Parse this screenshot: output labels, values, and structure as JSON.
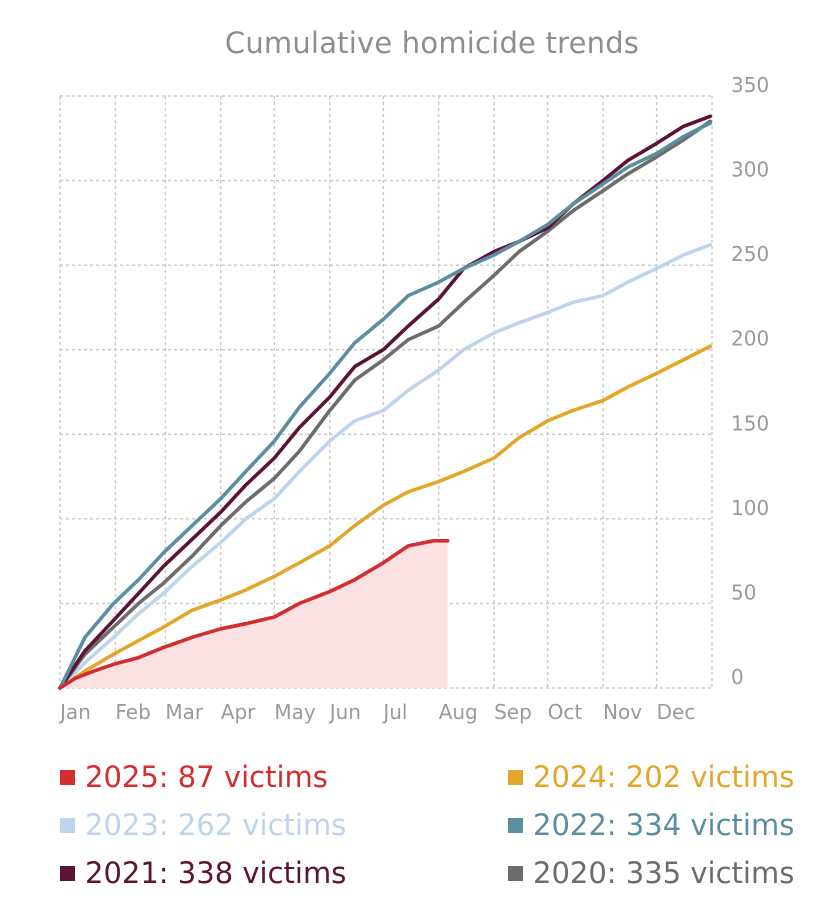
{
  "chart_data": {
    "type": "line",
    "title": "Cumulative homicide trends",
    "xlabel": "",
    "ylabel": "",
    "y_axis_position": "right",
    "ylim": [
      0,
      350
    ],
    "yticks": [
      0,
      50,
      100,
      150,
      200,
      250,
      300,
      350
    ],
    "x_month_labels": [
      "Jan",
      "Feb",
      "Mar",
      "Apr",
      "May",
      "Jun",
      "Jul",
      "Aug",
      "Sep",
      "Oct",
      "Nov",
      "Dec"
    ],
    "xlim_day_of_year": [
      1,
      366
    ],
    "grid": true,
    "legend_position": "bottom",
    "series": [
      {
        "name": "2025: 87 victims",
        "color": "#d32d2f",
        "filled": true,
        "fill_color": "#fbe1e2",
        "x": [
          1,
          10,
          20,
          31,
          45,
          59,
          75,
          91,
          105,
          121,
          135,
          152,
          166,
          182,
          196,
          210,
          218
        ],
        "y": [
          0,
          6,
          10,
          14,
          18,
          24,
          30,
          35,
          38,
          42,
          50,
          57,
          64,
          74,
          84,
          87,
          87
        ]
      },
      {
        "name": "2024: 202 victims",
        "color": "#e2a72a",
        "x": [
          1,
          15,
          31,
          45,
          59,
          75,
          91,
          105,
          121,
          135,
          152,
          166,
          182,
          196,
          213,
          227,
          244,
          258,
          274,
          288,
          305,
          319,
          335,
          350,
          365
        ],
        "y": [
          0,
          10,
          20,
          28,
          36,
          46,
          52,
          58,
          66,
          74,
          84,
          96,
          108,
          116,
          122,
          128,
          136,
          148,
          158,
          164,
          170,
          178,
          186,
          194,
          202
        ]
      },
      {
        "name": "2023: 262 victims",
        "color": "#bed4ec",
        "x": [
          1,
          15,
          31,
          45,
          59,
          75,
          91,
          105,
          121,
          135,
          152,
          166,
          182,
          196,
          213,
          227,
          244,
          258,
          274,
          288,
          305,
          319,
          335,
          350,
          365
        ],
        "y": [
          0,
          15,
          30,
          44,
          56,
          72,
          86,
          100,
          112,
          128,
          146,
          158,
          164,
          176,
          188,
          200,
          210,
          216,
          222,
          228,
          232,
          240,
          248,
          256,
          262
        ]
      },
      {
        "name": "2022: 334 victims",
        "color": "#5b8ea3",
        "x": [
          1,
          15,
          31,
          45,
          59,
          75,
          91,
          105,
          121,
          135,
          152,
          166,
          182,
          196,
          213,
          227,
          244,
          258,
          274,
          288,
          305,
          319,
          335,
          350,
          365
        ],
        "y": [
          0,
          30,
          50,
          64,
          80,
          96,
          112,
          128,
          146,
          166,
          186,
          204,
          218,
          232,
          240,
          248,
          256,
          264,
          274,
          286,
          298,
          308,
          316,
          326,
          334
        ]
      },
      {
        "name": "2021: 338 victims",
        "color": "#5a1436",
        "x": [
          1,
          15,
          31,
          45,
          59,
          75,
          91,
          105,
          121,
          135,
          152,
          166,
          182,
          196,
          213,
          227,
          244,
          258,
          274,
          288,
          305,
          319,
          335,
          350,
          365
        ],
        "y": [
          0,
          22,
          40,
          56,
          72,
          88,
          104,
          120,
          136,
          154,
          172,
          190,
          200,
          214,
          230,
          248,
          258,
          264,
          272,
          286,
          300,
          312,
          322,
          332,
          338
        ]
      },
      {
        "name": "2020: 335 victims",
        "color": "#6c6c6c",
        "x": [
          1,
          15,
          31,
          45,
          59,
          75,
          91,
          105,
          121,
          135,
          152,
          166,
          182,
          196,
          213,
          227,
          244,
          258,
          274,
          288,
          305,
          319,
          335,
          350,
          365
        ],
        "y": [
          0,
          20,
          36,
          50,
          62,
          78,
          96,
          110,
          124,
          140,
          164,
          182,
          194,
          206,
          214,
          228,
          244,
          258,
          270,
          282,
          294,
          304,
          314,
          324,
          335
        ]
      }
    ]
  }
}
